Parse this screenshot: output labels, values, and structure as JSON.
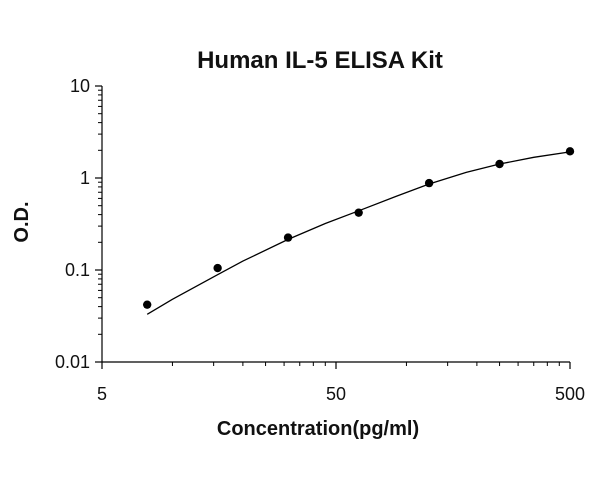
{
  "chart_data": {
    "type": "scatter",
    "title": "Human IL-5 ELISA Kit",
    "xlabel": "Concentration(pg/ml)",
    "ylabel": "O.D.",
    "x_scale": "log",
    "y_scale": "log",
    "xlim": [
      5,
      500
    ],
    "ylim": [
      0.01,
      10
    ],
    "x_tick_labels": [
      "5",
      "50",
      "500"
    ],
    "y_tick_labels": [
      "10",
      "1",
      "0.1",
      "0.01"
    ],
    "grid": false,
    "legend": "none",
    "series": [
      {
        "points": [
          {
            "x": 7.8,
            "y": 0.042
          },
          {
            "x": 15.6,
            "y": 0.105
          },
          {
            "x": 31.2,
            "y": 0.225
          },
          {
            "x": 62.5,
            "y": 0.42
          },
          {
            "x": 125,
            "y": 0.88
          },
          {
            "x": 250,
            "y": 1.42
          },
          {
            "x": 500,
            "y": 1.95
          }
        ]
      }
    ],
    "fit_curve": [
      {
        "x": 7.8,
        "y": 0.033
      },
      {
        "x": 10,
        "y": 0.048
      },
      {
        "x": 15.6,
        "y": 0.089
      },
      {
        "x": 20,
        "y": 0.125
      },
      {
        "x": 31.2,
        "y": 0.215
      },
      {
        "x": 45,
        "y": 0.32
      },
      {
        "x": 62.5,
        "y": 0.44
      },
      {
        "x": 90,
        "y": 0.63
      },
      {
        "x": 125,
        "y": 0.86
      },
      {
        "x": 180,
        "y": 1.15
      },
      {
        "x": 250,
        "y": 1.42
      },
      {
        "x": 350,
        "y": 1.68
      },
      {
        "x": 500,
        "y": 1.92
      }
    ],
    "colors": {
      "marker": "#000000",
      "line": "#000000",
      "axis": "#000000"
    }
  }
}
